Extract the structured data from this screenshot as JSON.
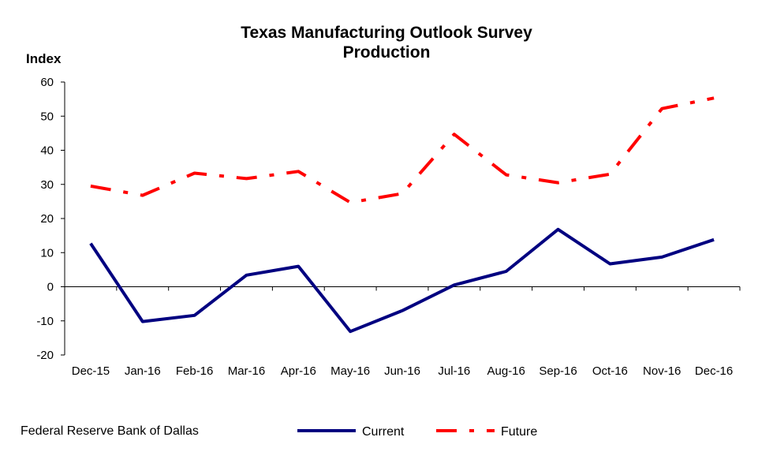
{
  "chart_data": {
    "type": "line",
    "title": "Texas Manufacturing Outlook Survey",
    "subtitle": "Production",
    "ylabel": "Index",
    "xlabel": "",
    "ylim": [
      -20,
      60
    ],
    "yticks": [
      -20,
      -10,
      0,
      10,
      20,
      30,
      40,
      50,
      60
    ],
    "grid": false,
    "legend_position": "bottom",
    "categories": [
      "Dec-15",
      "Jan-16",
      "Feb-16",
      "Mar-16",
      "Apr-16",
      "May-16",
      "Jun-16",
      "Jul-16",
      "Aug-16",
      "Sep-16",
      "Oct-16",
      "Nov-16",
      "Dec-16"
    ],
    "series": [
      {
        "name": "Current",
        "color": "#000080",
        "style": "solid",
        "values": [
          12.7,
          -10.2,
          -8.4,
          3.4,
          6.0,
          -13.1,
          -7.0,
          0.5,
          4.5,
          16.8,
          6.7,
          8.7,
          13.8
        ]
      },
      {
        "name": "Future",
        "color": "#ff0000",
        "style": "dash-dot",
        "values": [
          29.5,
          26.8,
          33.3,
          31.7,
          33.8,
          24.7,
          27.3,
          44.7,
          32.8,
          30.5,
          33.0,
          52.2,
          55.3
        ]
      }
    ]
  },
  "footer": {
    "source": "Federal Reserve Bank of Dallas"
  }
}
